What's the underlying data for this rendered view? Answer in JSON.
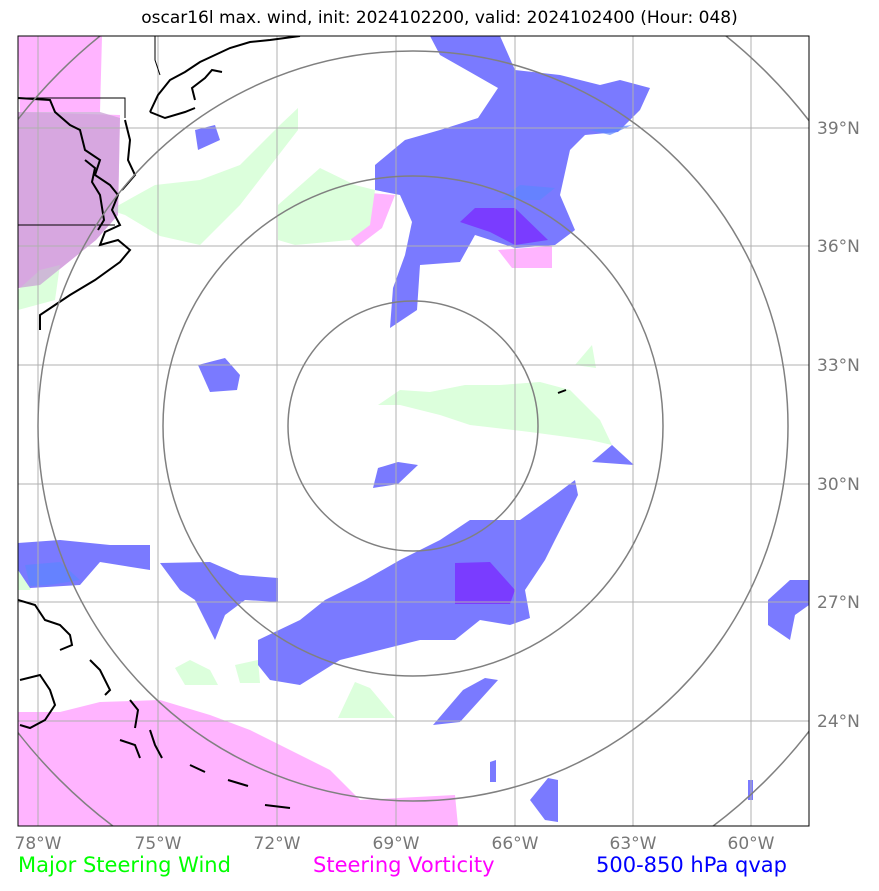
{
  "title": "oscar16l max. wind, init: 2024102200, valid: 2024102400 (Hour: 048)",
  "x_ticks": [
    "78°W",
    "75°W",
    "72°W",
    "69°W",
    "66°W",
    "63°W",
    "60°W"
  ],
  "y_ticks": [
    "39°N",
    "36°N",
    "33°N",
    "30°N",
    "27°N",
    "24°N"
  ],
  "legend": [
    {
      "label": "Major Steering Wind",
      "color": "#00ff00"
    },
    {
      "label": "Steering Vorticity",
      "color": "#ff00ff"
    },
    {
      "label": "500-850 hPa qvap",
      "color": "#0000ff"
    }
  ],
  "colors": {
    "wind_fill": "#dcffdc",
    "vorticity_fill": "#ffb4ff",
    "qvap_fill": "#7a7aff",
    "qvap_strong": "#7a3cff",
    "grid": "#b0b0b0",
    "range_rings": "#808080"
  }
}
